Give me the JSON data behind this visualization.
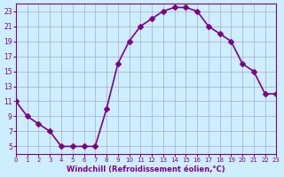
{
  "x": [
    0,
    1,
    2,
    3,
    4,
    5,
    6,
    7,
    8,
    9,
    10,
    11,
    12,
    13,
    14,
    15,
    16,
    17,
    18,
    19,
    20,
    21,
    22,
    23
  ],
  "y": [
    11,
    9,
    8,
    7,
    5,
    5,
    5,
    5,
    10,
    16,
    19,
    21,
    22,
    23,
    23.5,
    23.5,
    23,
    21,
    20,
    19,
    16,
    15,
    12,
    12
  ],
  "xlim": [
    0,
    23
  ],
  "ylim": [
    4,
    24
  ],
  "xticks": [
    0,
    1,
    2,
    3,
    4,
    5,
    6,
    7,
    8,
    9,
    10,
    11,
    12,
    13,
    14,
    15,
    16,
    17,
    18,
    19,
    20,
    21,
    22,
    23
  ],
  "yticks": [
    5,
    7,
    9,
    11,
    13,
    15,
    17,
    19,
    21,
    23
  ],
  "xlabel": "Windchill (Refroidissement éolien,°C)",
  "line_color": "#800080",
  "bg_color": "#cceeff",
  "grid_color": "#aaaacc",
  "markersize": 3,
  "linewidth": 1.2
}
